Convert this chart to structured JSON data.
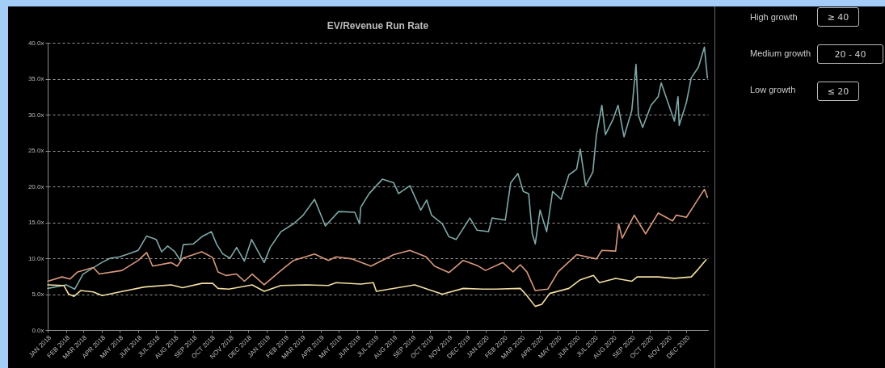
{
  "chart_data": {
    "type": "line",
    "title": "EV/Revenue Run Rate",
    "legend": "top right",
    "grid": "y",
    "line_style": "solid",
    "xlim": [
      "2018-01-01",
      "2021-01-06"
    ],
    "xticks": [
      {
        "value": "2018-01",
        "label": "JAN 2018"
      },
      {
        "value": "2018-02",
        "label": "FEB 2018"
      },
      {
        "value": "2018-03",
        "label": "MAR 2018"
      },
      {
        "value": "2018-04",
        "label": "APR 2018"
      },
      {
        "value": "2018-05",
        "label": "MAY 2018"
      },
      {
        "value": "2018-06",
        "label": "JUN 2018"
      },
      {
        "value": "2018-07",
        "label": "JUL 2018"
      },
      {
        "value": "2018-08",
        "label": "AUG 2018"
      },
      {
        "value": "2018-09",
        "label": "SEP 2018"
      },
      {
        "value": "2018-10",
        "label": "OCT 2018"
      },
      {
        "value": "2018-11",
        "label": "NOV 2018"
      },
      {
        "value": "2018-12",
        "label": "DEC 2018"
      },
      {
        "value": "2019-01",
        "label": "JAN 2019"
      },
      {
        "value": "2019-02",
        "label": "FEB 2019"
      },
      {
        "value": "2019-03",
        "label": "MAR 2019"
      },
      {
        "value": "2019-04",
        "label": "APR 2019"
      },
      {
        "value": "2019-05",
        "label": "MAY 2019"
      },
      {
        "value": "2019-06",
        "label": "JUN 2019"
      },
      {
        "value": "2019-07",
        "label": "JUL 2019"
      },
      {
        "value": "2019-08",
        "label": "AUG 2019"
      },
      {
        "value": "2019-09",
        "label": "SEP 2019"
      },
      {
        "value": "2019-10",
        "label": "OCT 2019"
      },
      {
        "value": "2019-11",
        "label": "NOV 2019"
      },
      {
        "value": "2019-12",
        "label": "DEC 2019"
      },
      {
        "value": "2020-01",
        "label": "JAN 2020"
      },
      {
        "value": "2020-02",
        "label": "FEB 2020"
      },
      {
        "value": "2020-03",
        "label": "MAR 2020"
      },
      {
        "value": "2020-04",
        "label": "APR 2020"
      },
      {
        "value": "2020-05",
        "label": "MAY 2020"
      },
      {
        "value": "2020-06",
        "label": "JUN 2020"
      },
      {
        "value": "2020-07",
        "label": "JUL 2020"
      },
      {
        "value": "2020-08",
        "label": "AUG 2020"
      },
      {
        "value": "2020-09",
        "label": "SEP 2020"
      },
      {
        "value": "2020-10",
        "label": "OCT 2020"
      },
      {
        "value": "2020-11",
        "label": "NOV 2020"
      },
      {
        "value": "2020-12",
        "label": "DEC 2020"
      }
    ],
    "ylim": [
      0,
      40
    ],
    "yticks": [
      {
        "value": 0,
        "label": "0.0x"
      },
      {
        "value": 5,
        "label": "5.0x"
      },
      {
        "value": 10,
        "label": "10.0x"
      },
      {
        "value": 15,
        "label": "15.0x"
      },
      {
        "value": 20,
        "label": "20.0x"
      },
      {
        "value": 25,
        "label": "25.0x"
      },
      {
        "value": 30,
        "label": "30.0x"
      },
      {
        "value": 35,
        "label": "35.0x"
      },
      {
        "value": 40,
        "label": "40.0x"
      }
    ],
    "annotations": [
      "≥ 40",
      "20 - 40",
      "≤ 20"
    ],
    "series": [
      {
        "name": "High growth",
        "color": "#7fa8a8",
        "x": [
          "2018-01-01",
          "2018-02-01",
          "2018-02-15",
          "2018-03-01",
          "2018-04-01",
          "2018-04-15",
          "2018-05-01",
          "2018-05-15",
          "2018-06-01",
          "2018-06-15",
          "2018-07-01",
          "2018-07-10",
          "2018-07-20",
          "2018-08-01",
          "2018-08-10",
          "2018-08-15",
          "2018-09-01",
          "2018-09-15",
          "2018-10-01",
          "2018-10-10",
          "2018-10-20",
          "2018-11-01",
          "2018-11-12",
          "2018-11-25",
          "2018-12-07",
          "2018-12-28",
          "2019-01-07",
          "2019-01-25",
          "2019-02-15",
          "2019-03-03",
          "2019-03-22",
          "2019-04-09",
          "2019-05-01",
          "2019-05-28",
          "2019-06-05",
          "2019-06-07",
          "2019-06-21",
          "2019-07-13",
          "2019-08-01",
          "2019-08-09",
          "2019-08-28",
          "2019-09-15",
          "2019-09-25",
          "2019-10-03",
          "2019-10-21",
          "2019-11-01",
          "2019-11-13",
          "2019-12-06",
          "2019-12-18",
          "2020-01-06",
          "2020-01-12",
          "2020-02-03",
          "2020-02-12",
          "2020-02-24",
          "2020-03-04",
          "2020-03-13",
          "2020-03-19",
          "2020-03-24",
          "2020-04-01",
          "2020-04-12",
          "2020-04-22",
          "2020-05-06",
          "2020-05-19",
          "2020-06-01",
          "2020-06-07",
          "2020-06-16",
          "2020-06-28",
          "2020-07-04",
          "2020-07-13",
          "2020-07-19",
          "2020-08-01",
          "2020-08-09",
          "2020-08-19",
          "2020-09-01",
          "2020-09-08",
          "2020-09-12",
          "2020-09-19",
          "2020-10-03",
          "2020-10-15",
          "2020-10-20",
          "2020-11-03",
          "2020-11-11",
          "2020-11-17",
          "2020-11-19",
          "2020-12-01",
          "2020-12-09",
          "2020-12-21",
          "2020-12-31",
          "2021-01-05"
        ],
        "values": [
          5.8,
          6.3,
          5.7,
          7.8,
          9.4,
          10.0,
          10.2,
          10.6,
          11.1,
          13.1,
          12.6,
          10.9,
          11.7,
          10.9,
          9.7,
          11.9,
          12.0,
          13.0,
          13.7,
          11.9,
          10.6,
          10.0,
          11.5,
          9.6,
          12.6,
          9.4,
          11.5,
          13.7,
          14.8,
          16.0,
          18.2,
          14.5,
          16.5,
          16.4,
          14.8,
          17.1,
          19.0,
          21.0,
          20.5,
          19.0,
          20.1,
          16.7,
          18.1,
          16.0,
          14.8,
          13.0,
          12.6,
          15.6,
          13.9,
          13.7,
          15.6,
          15.3,
          20.5,
          21.8,
          19.3,
          19.0,
          13.4,
          12.0,
          16.7,
          13.7,
          19.3,
          18.2,
          21.6,
          22.4,
          25.2,
          20.1,
          22.0,
          27.2,
          31.3,
          27.2,
          29.4,
          31.3,
          26.9,
          30.6,
          37.0,
          29.9,
          28.2,
          31.3,
          32.5,
          34.4,
          31.0,
          29.1,
          32.5,
          28.5,
          31.7,
          35.1,
          36.6,
          39.4,
          35.1
        ]
      },
      {
        "name": "Medium growth",
        "color": "#d9987c",
        "x": [
          "2018-01-01",
          "2018-01-25",
          "2018-02-07",
          "2018-02-20",
          "2018-03-18",
          "2018-03-28",
          "2018-05-05",
          "2018-06-01",
          "2018-06-15",
          "2018-06-25",
          "2018-07-26",
          "2018-08-05",
          "2018-08-14",
          "2018-09-15",
          "2018-10-03",
          "2018-10-12",
          "2018-10-25",
          "2018-11-12",
          "2018-11-25",
          "2018-12-08",
          "2018-12-28",
          "2019-01-25",
          "2019-02-15",
          "2019-03-22",
          "2019-04-14",
          "2019-04-27",
          "2019-05-24",
          "2019-06-24",
          "2019-08-01",
          "2019-08-28",
          "2019-09-24",
          "2019-10-08",
          "2019-11-01",
          "2019-11-25",
          "2019-12-18",
          "2020-01-01",
          "2020-01-30",
          "2020-02-16",
          "2020-02-28",
          "2020-03-10",
          "2020-03-24",
          "2020-04-14",
          "2020-05-01",
          "2020-06-01",
          "2020-07-04",
          "2020-07-13",
          "2020-08-05",
          "2020-08-10",
          "2020-08-16",
          "2020-09-05",
          "2020-09-24",
          "2020-10-15",
          "2020-11-08",
          "2020-11-14",
          "2020-12-01",
          "2020-12-18",
          "2020-12-31",
          "2021-01-05"
        ],
        "values": [
          6.8,
          7.4,
          7.1,
          8.1,
          8.7,
          7.8,
          8.3,
          9.7,
          10.8,
          8.9,
          9.4,
          8.9,
          10.0,
          10.9,
          10.1,
          8.1,
          7.6,
          7.8,
          6.8,
          7.8,
          6.3,
          8.3,
          9.7,
          10.6,
          9.7,
          10.2,
          9.9,
          8.9,
          10.5,
          11.1,
          10.2,
          8.9,
          8.0,
          9.7,
          9.0,
          8.3,
          9.4,
          8.1,
          9.1,
          8.1,
          5.5,
          5.7,
          8.1,
          10.5,
          9.9,
          11.1,
          11.0,
          14.8,
          12.8,
          16.0,
          13.4,
          16.3,
          15.2,
          16.0,
          15.7,
          17.9,
          19.6,
          18.5
        ]
      },
      {
        "name": "Low growth",
        "color": "#f3dfa2",
        "x": [
          "2018-01-01",
          "2018-01-28",
          "2018-02-05",
          "2018-02-14",
          "2018-02-25",
          "2018-03-18",
          "2018-04-02",
          "2018-05-01",
          "2018-06-11",
          "2018-07-26",
          "2018-08-14",
          "2018-09-15",
          "2018-10-03",
          "2018-10-12",
          "2018-10-30",
          "2018-11-12",
          "2018-12-08",
          "2018-12-28",
          "2019-01-25",
          "2019-03-08",
          "2019-04-14",
          "2019-04-27",
          "2019-06-07",
          "2019-06-28",
          "2019-07-03",
          "2019-09-05",
          "2019-10-21",
          "2019-11-25",
          "2019-12-27",
          "2020-01-18",
          "2020-02-28",
          "2020-03-08",
          "2020-03-24",
          "2020-04-04",
          "2020-04-17",
          "2020-05-19",
          "2020-06-07",
          "2020-06-29",
          "2020-07-09",
          "2020-08-05",
          "2020-09-01",
          "2020-09-10",
          "2020-10-15",
          "2020-11-11",
          "2020-12-09",
          "2020-12-21",
          "2021-01-03"
        ],
        "values": [
          6.3,
          6.2,
          5.0,
          4.7,
          5.5,
          5.3,
          4.8,
          5.3,
          6.0,
          6.3,
          5.9,
          6.5,
          6.5,
          5.8,
          5.7,
          5.9,
          6.3,
          5.4,
          6.2,
          6.3,
          6.2,
          6.6,
          6.4,
          6.6,
          5.4,
          6.3,
          5.0,
          5.8,
          5.7,
          5.7,
          5.8,
          5.0,
          3.3,
          3.6,
          5.1,
          5.8,
          7.0,
          7.6,
          6.6,
          7.2,
          6.8,
          7.4,
          7.4,
          7.2,
          7.4,
          8.5,
          9.8
        ]
      }
    ]
  }
}
